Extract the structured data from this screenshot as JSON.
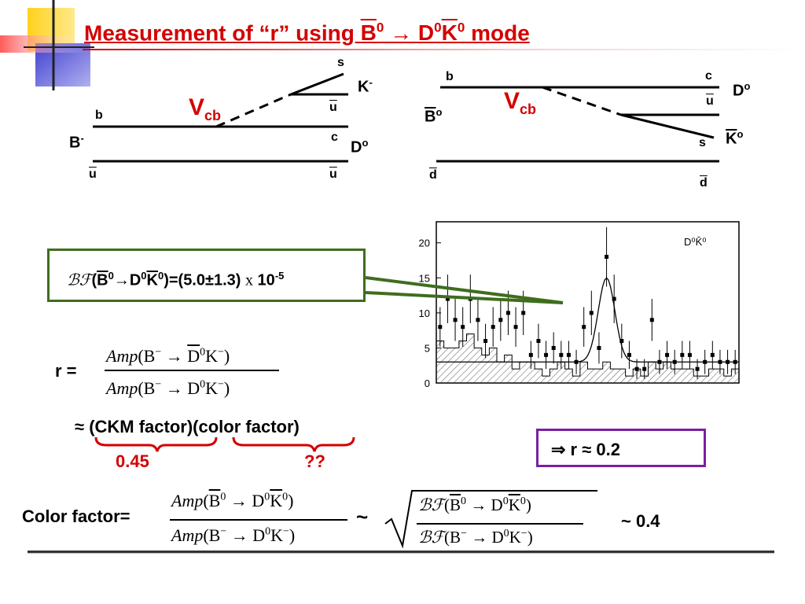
{
  "title": {
    "prefix": "Measurement of ",
    "quoted": "“r”",
    "middle": " using ",
    "B": "B",
    "B_sup": "0",
    "arrow": " → ",
    "D": "D",
    "D_sup": "0",
    "K": "K",
    "K_sup": "0",
    "suffix": " mode "
  },
  "left_diagram": {
    "s": "s",
    "K": "K",
    "K_sup": "-",
    "u_top": "u",
    "b": "b",
    "Vcb": "V",
    "Vcb_sub": "cb",
    "B": "B",
    "B_sup": "-",
    "c": "c",
    "D": "D",
    "D_sup": "o",
    "u_left": "u",
    "u_right": "u"
  },
  "right_diagram": {
    "b": "b",
    "c": "c",
    "D": "D",
    "D_sup": "o",
    "u": "u",
    "Vcb": "V",
    "Vcb_sub": "cb",
    "B": "B",
    "B_sup": "o",
    "s": "s",
    "K": "K",
    "K_sup": "o",
    "d_left": "d",
    "d_right": "d"
  },
  "plot_label": "D⁰K̄⁰",
  "chart_data": {
    "type": "scatter",
    "title": "",
    "legend": "D⁰K̄⁰",
    "yticks": [
      "0",
      "5",
      "10",
      "15",
      "20"
    ],
    "ylim": [
      0,
      23
    ],
    "x": [
      1,
      2,
      3,
      4,
      5,
      6,
      7,
      8,
      9,
      10,
      11,
      12,
      13,
      14,
      15,
      16,
      17,
      18,
      19,
      20,
      21,
      22,
      23,
      24,
      25,
      26,
      27,
      28,
      29,
      30,
      31,
      32,
      33,
      34,
      35,
      36,
      37,
      38,
      39,
      40
    ],
    "values": [
      8,
      12,
      9,
      8,
      12,
      9,
      6,
      8,
      9,
      10,
      8,
      10,
      4,
      6,
      4,
      5,
      4,
      4,
      3,
      8,
      10,
      5,
      18,
      12,
      6,
      4,
      2,
      2,
      9,
      3,
      4,
      3,
      4,
      4,
      2,
      3,
      4,
      3,
      3,
      3
    ]
  },
  "bf_box": {
    "symbol": "ℬℱ",
    "open": "(",
    "B": "B",
    "B_sup": "0",
    "arrow": "→",
    "D": "D",
    "D_sup": "0",
    "K": "K",
    "K_sup": "0",
    "result": ")=(5.0±1.3) ",
    "times": "x",
    "power": " 10",
    "exp": "-5"
  },
  "r_eq": {
    "lhs": "r =",
    "num": {
      "amp": "Amp",
      "open": "(B",
      "sup1": "−",
      "arrow": " → ",
      "D": "D",
      "D_sup": "0",
      "K": "K",
      "K_sup": "−",
      "close": ")"
    },
    "den": {
      "amp": "Amp",
      "open": "(B",
      "sup1": "−",
      "arrow": " → ",
      "D": "D",
      "D_sup": "0",
      "K": "K",
      "K_sup": "−",
      "close": ")"
    }
  },
  "approx_line": {
    "approx": "≈",
    "text": " (CKM factor)(color factor)"
  },
  "ckm_value": "0.45",
  "color_value": "??",
  "r_box": "⇒ r ≈ 0.2",
  "color_factor": {
    "label": "Color factor=",
    "num": {
      "amp": "Amp",
      "open": "(",
      "B": "B",
      "B_sup": "0",
      "arrow": " → ",
      "D": "D",
      "D_sup": "0",
      "K": "K",
      "K_sup": "0",
      "close": ")"
    },
    "den": {
      "amp": "Amp",
      "open": "(B",
      "sup1": "−",
      "arrow": " → ",
      "D": "D",
      "D_sup": "0",
      "K": "K",
      "K_sup": "−",
      "close": ")"
    },
    "tilde": "~",
    "bf_num": {
      "bf": "ℬℱ",
      "open": "(",
      "B": "B",
      "B_sup": "0",
      "arrow": " → ",
      "D": "D",
      "D_sup": "0",
      "K": "K",
      "K_sup": "0",
      "close": ")"
    },
    "bf_den": {
      "bf": "ℬℱ",
      "open": "(B",
      "sup1": "−",
      "arrow": " → ",
      "D": "D",
      "D_sup": "0",
      "K": "K",
      "K_sup": "−",
      "close": ")"
    },
    "result": "~ 0.4"
  },
  "colors": {
    "title_red": "#d40000",
    "box_green": "#3f6d1e",
    "box_purple": "#7a1fa2",
    "accent_yellow": "#ffd21e",
    "accent_blue": "#3f3fd0"
  }
}
